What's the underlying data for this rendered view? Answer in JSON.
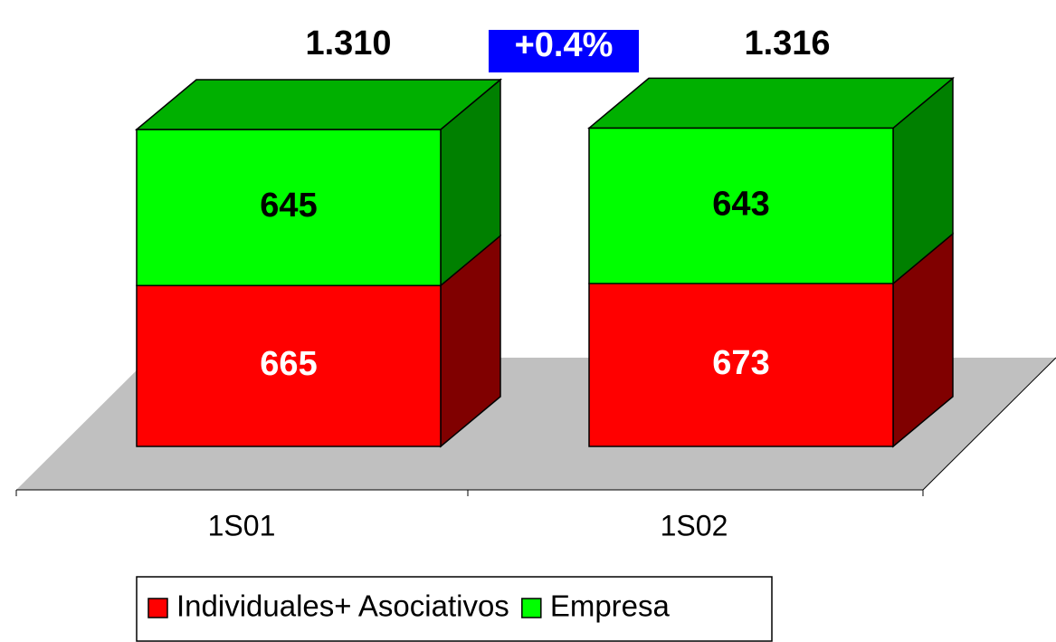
{
  "chart_data": {
    "type": "bar3d_stacked",
    "categories": [
      "1S01",
      "1S02"
    ],
    "series": [
      {
        "name": "Individuales+ Asociativos",
        "color": "#ff0000",
        "side_color": "#800000",
        "label_color": "#ffffff",
        "values": [
          665,
          673
        ]
      },
      {
        "name": "Empresa",
        "color": "#00ff00",
        "side_color": "#008000",
        "top_color": "#00b000",
        "label_color": "#000000",
        "values": [
          645,
          643
        ]
      }
    ],
    "totals": {
      "values": [
        1310,
        1316
      ],
      "value_labels": [
        "1.310",
        "1.316"
      ]
    },
    "annotation": "+0.4%",
    "annotation_color": "#0000ff",
    "legend": "bottom"
  }
}
